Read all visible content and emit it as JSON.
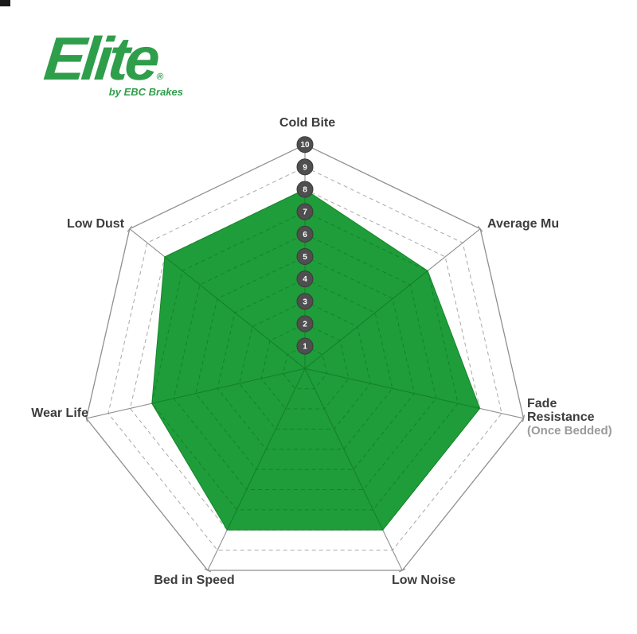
{
  "logo": {
    "brand": "Elite",
    "registered_mark": "®",
    "sub_brand": "by EBC Brakes",
    "color": "#2f9e4b"
  },
  "chart_data": {
    "type": "radar",
    "categories": [
      "Cold Bite",
      "Average Mu",
      "Fade Resistance",
      "Low Noise",
      "Bed in Speed",
      "Wear Life",
      "Low Dust"
    ],
    "axis_sub_labels": {
      "2": "(Once Bedded)"
    },
    "values": [
      8,
      7,
      8,
      8,
      8,
      7,
      8
    ],
    "scale": {
      "min": 0,
      "max": 10,
      "tick_labels": [
        "1",
        "2",
        "3",
        "4",
        "5",
        "6",
        "7",
        "8",
        "9",
        "10"
      ]
    },
    "grid": "on",
    "legend": "none",
    "colors": {
      "fill": "#1f9d3a",
      "fill_edge": "#17862c",
      "inner_grid": "#128029",
      "grid": "#a9a9a9",
      "grid_strong": "#8f8f8f",
      "tick_circle": "#4f4f4f",
      "tick_circle_edge": "#3a3a3a",
      "tick_text": "#ffffff",
      "label_text": "#3c3c3c",
      "sub_label_text": "#9b9b9b"
    }
  }
}
